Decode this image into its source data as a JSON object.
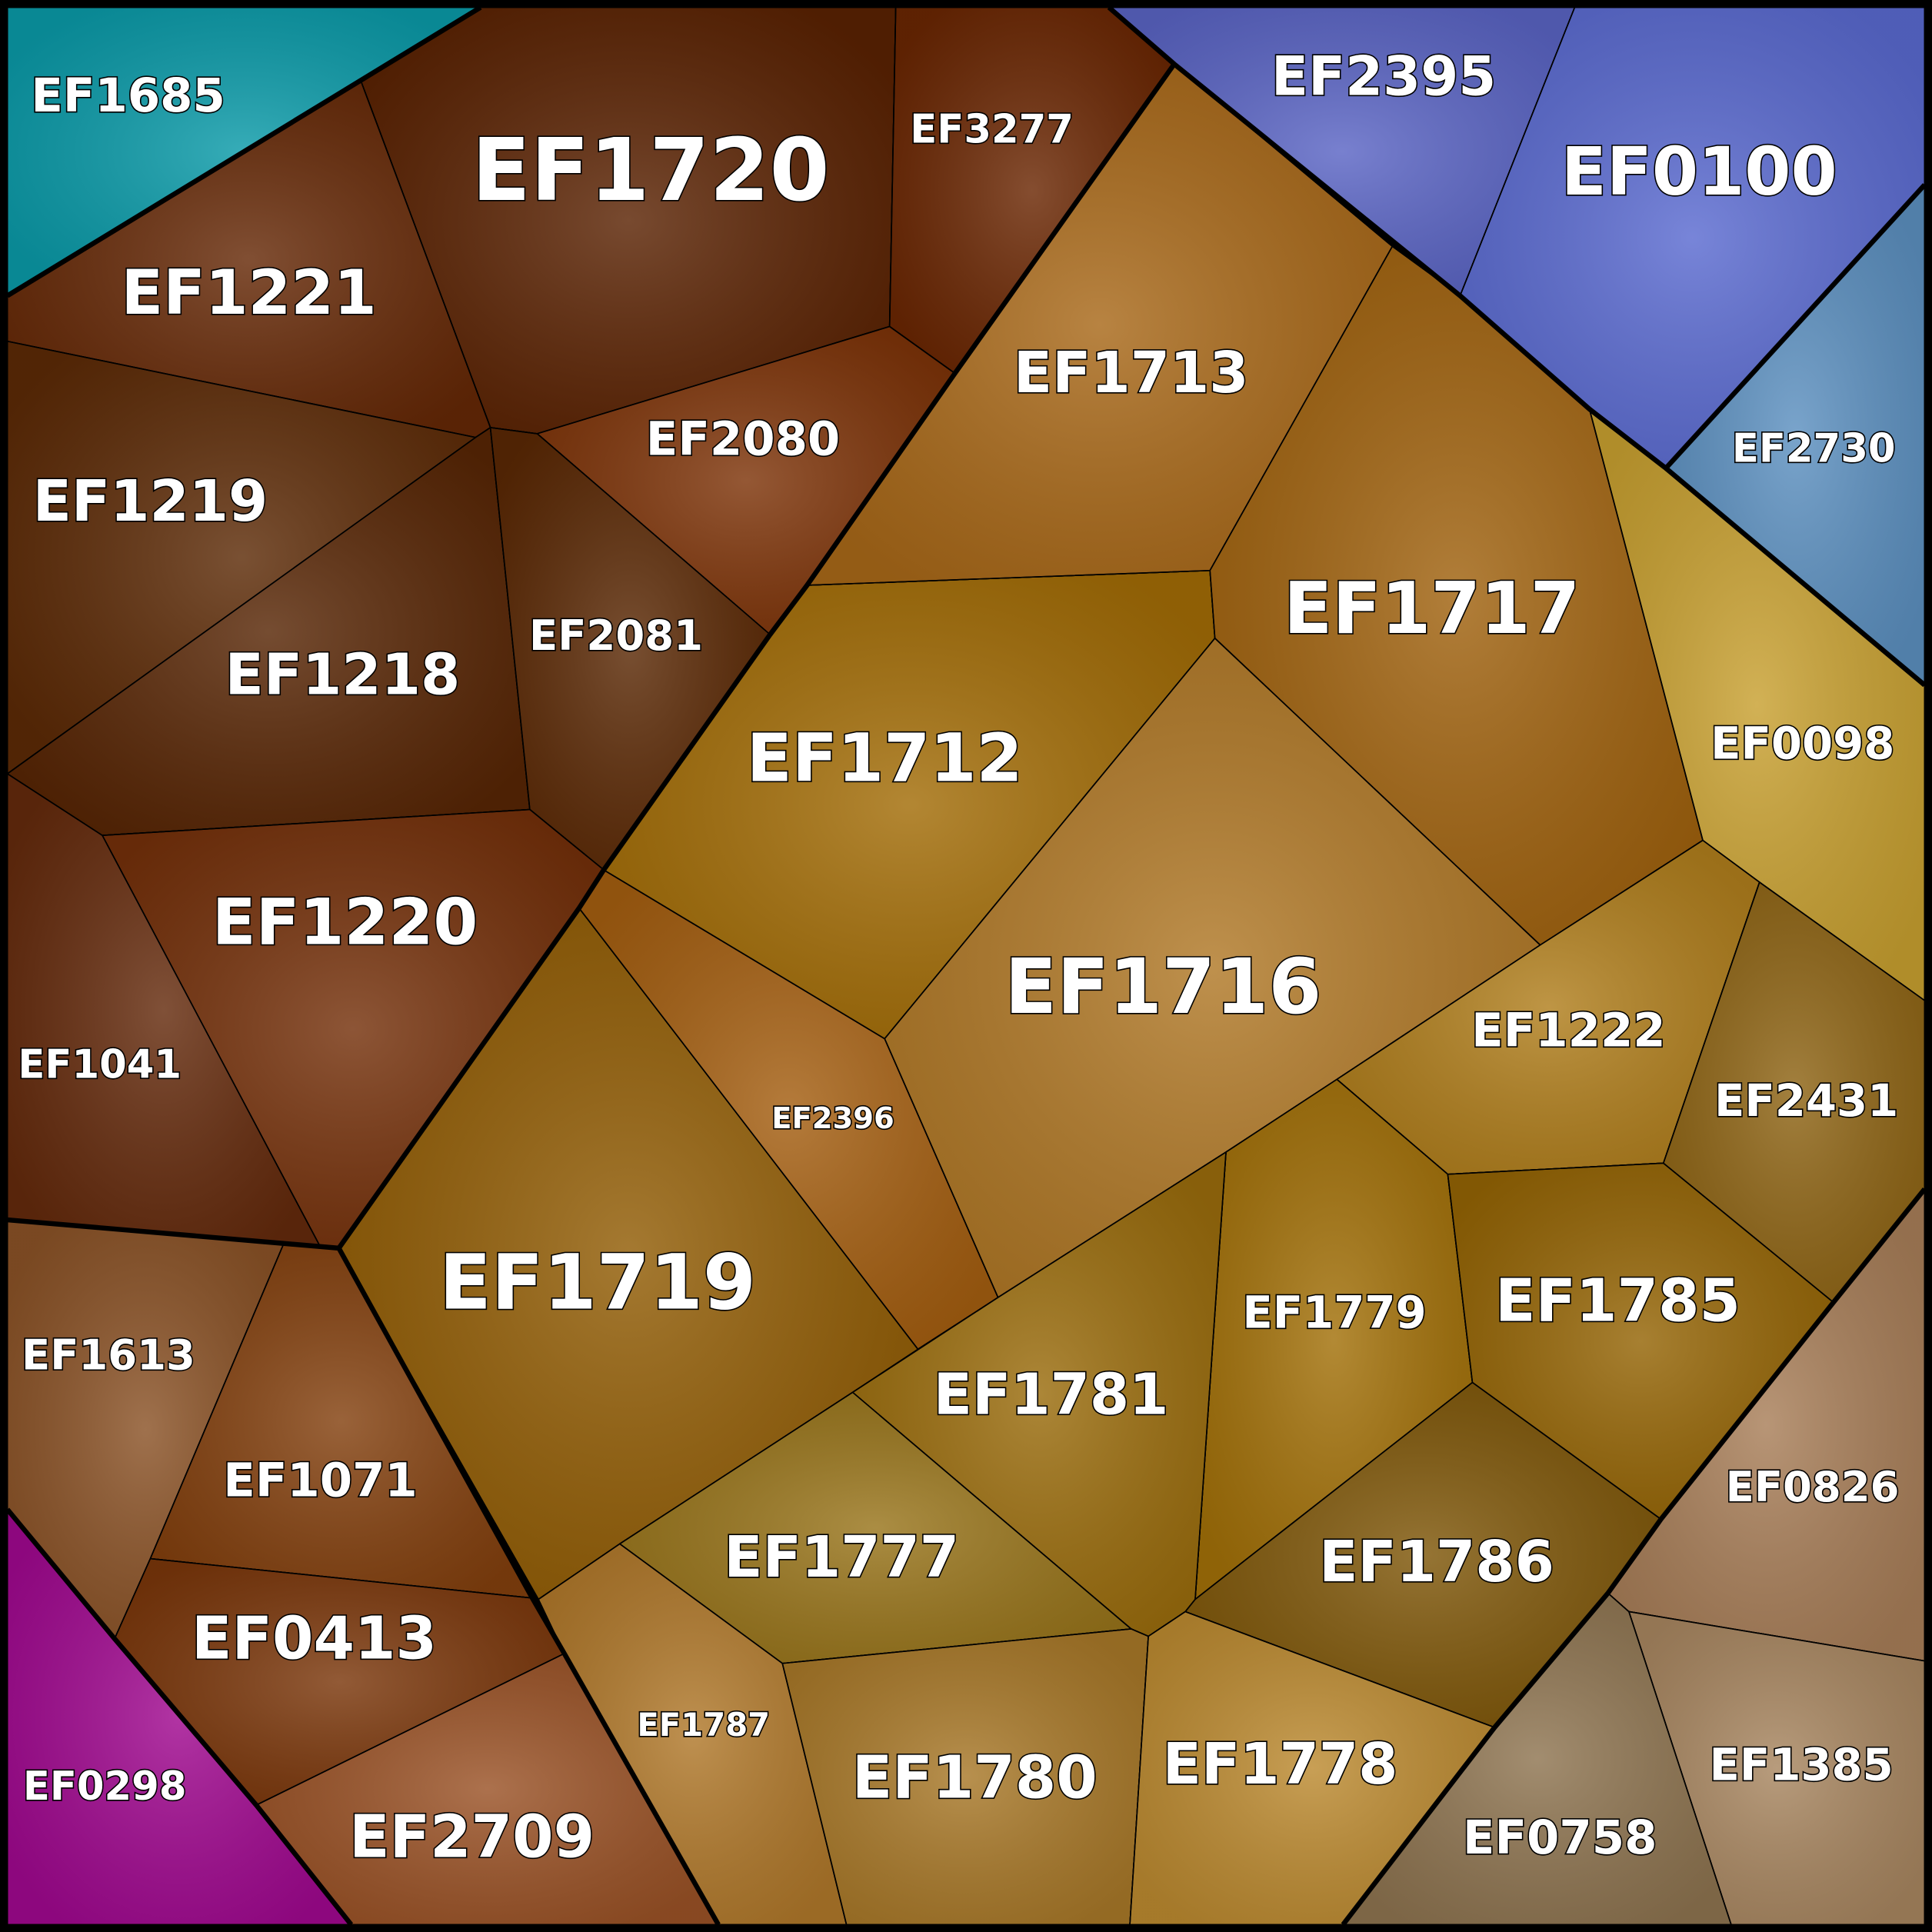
{
  "nodes": [
    {
      "label": "EF1685"
    },
    {
      "label": "EF1720"
    },
    {
      "label": "EF3277"
    },
    {
      "label": "EF1221"
    },
    {
      "label": "EF1219"
    },
    {
      "label": "EF1218"
    },
    {
      "label": "EF2080"
    },
    {
      "label": "EF2081"
    },
    {
      "label": "EF1220"
    },
    {
      "label": "EF1041"
    },
    {
      "label": "EF1613"
    },
    {
      "label": "EF1071"
    },
    {
      "label": "EF0413"
    },
    {
      "label": "EF0298"
    },
    {
      "label": "EF2709"
    },
    {
      "label": "EF1719"
    },
    {
      "label": "EF2396"
    },
    {
      "label": "EF1712"
    },
    {
      "label": "EF1713"
    },
    {
      "label": "EF1717"
    },
    {
      "label": "EF2395"
    },
    {
      "label": "EF0100"
    },
    {
      "label": "EF2730"
    },
    {
      "label": "EF0098"
    },
    {
      "label": "EF1716"
    },
    {
      "label": "EF1222"
    },
    {
      "label": "EF2431"
    },
    {
      "label": "EF1779"
    },
    {
      "label": "EF1781"
    },
    {
      "label": "EF1785"
    },
    {
      "label": "EF1786"
    },
    {
      "label": "EF1777"
    },
    {
      "label": "EF1787"
    },
    {
      "label": "EF1780"
    },
    {
      "label": "EF1778"
    },
    {
      "label": "EF0826"
    },
    {
      "label": "EF1385"
    },
    {
      "label": "EF0758"
    }
  ]
}
